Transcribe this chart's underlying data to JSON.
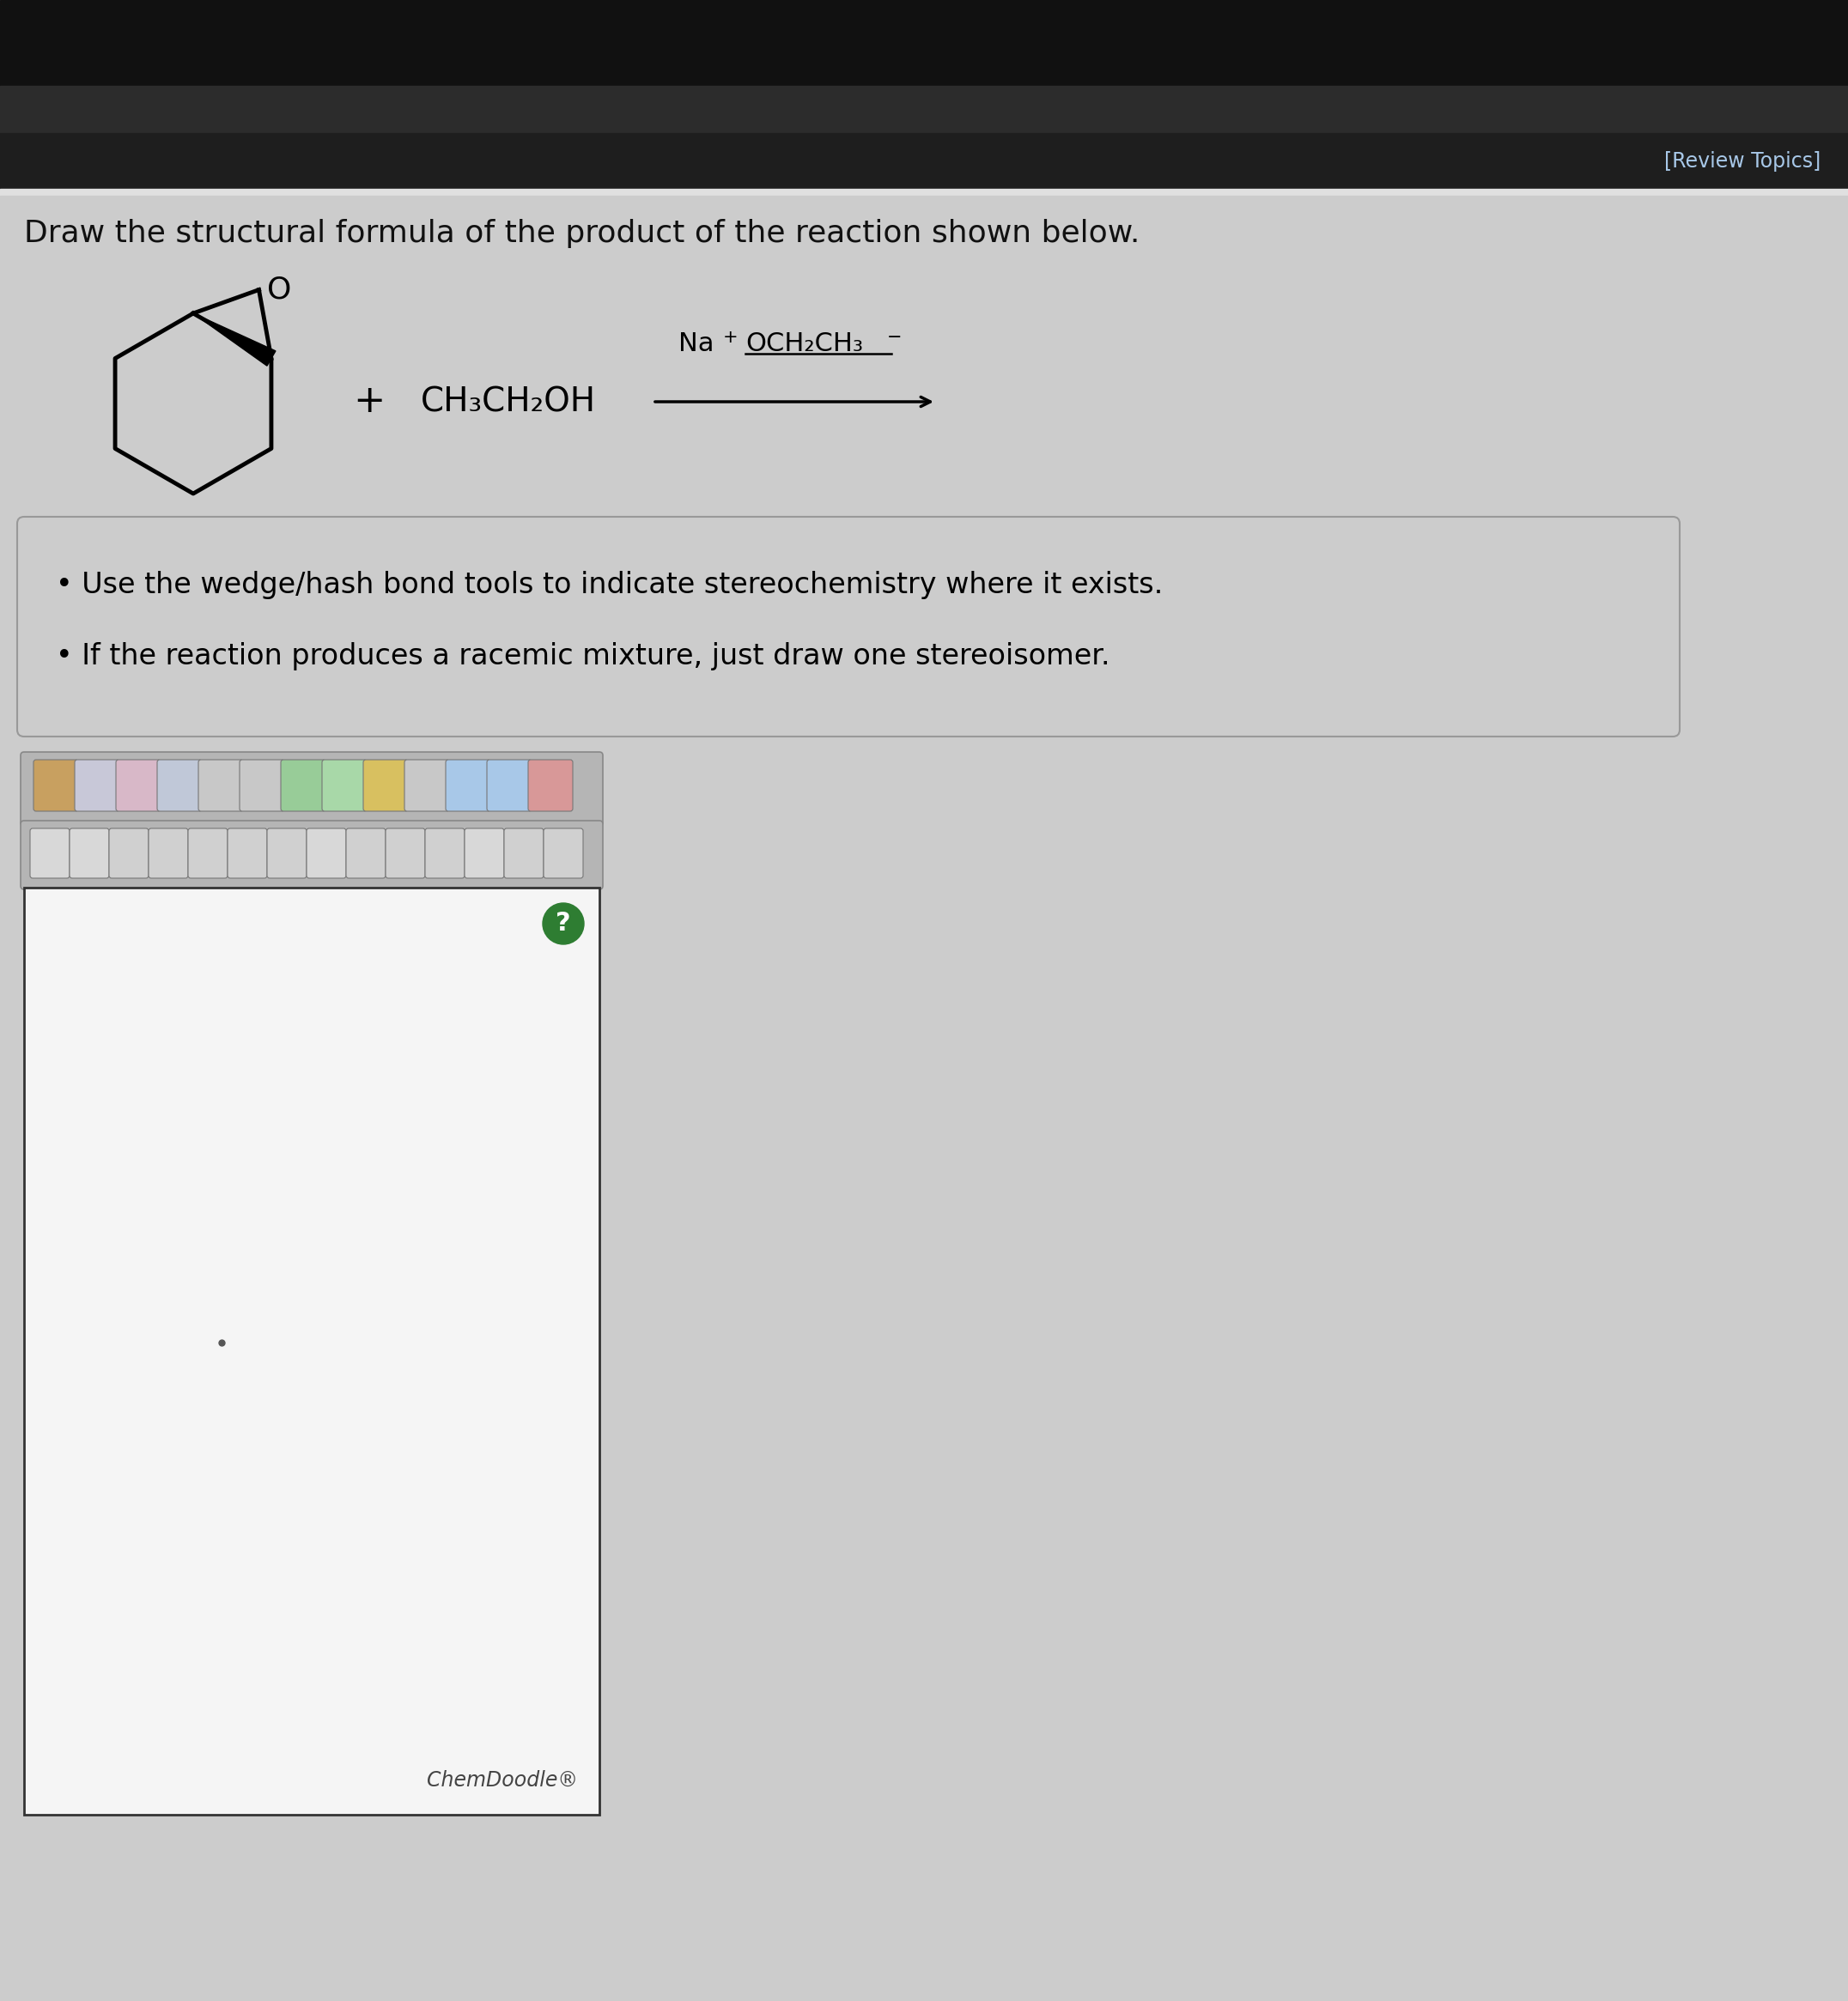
{
  "bg_top_dark": "#1a1a1a",
  "bg_header_bar": "#2c2c2c",
  "bg_main": "#cbcbcb",
  "review_topics_text": "[Review Topics]",
  "review_topics_color": "#a8c8e8",
  "main_question": "Draw the structural formula of the product of the reaction shown below.",
  "bullet1": "Use the wedge/hash bond tools to indicate stereochemistry where it exists.",
  "bullet2": "If the reaction produces a racemic mixture, just draw one stereoisomer.",
  "chemdoodle_text": "ChemDoodle",
  "canvas_bg": "#f5f5f5",
  "toolbar_bg": "#c0c0c0",
  "box_bg": "#cccccc",
  "box_border": "#999999"
}
